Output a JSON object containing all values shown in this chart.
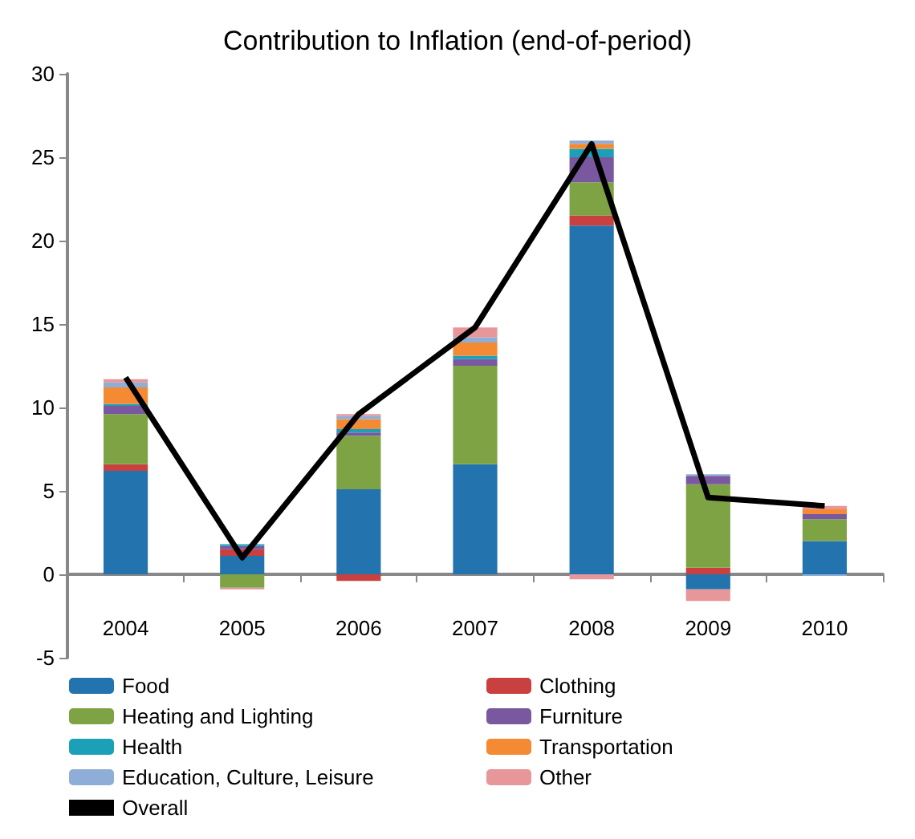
{
  "chart_data": {
    "type": "bar",
    "title": "Contribution to Inflation (end-of-period)",
    "stacked": true,
    "categories": [
      "2004",
      "2005",
      "2006",
      "2007",
      "2008",
      "2009",
      "2010"
    ],
    "series": [
      {
        "name": "Food",
        "color": "#2373ae",
        "values": [
          6.2,
          1.1,
          5.1,
          6.6,
          20.9,
          -0.9,
          2.0
        ]
      },
      {
        "name": "Clothing",
        "color": "#c8403f",
        "values": [
          0.4,
          0.4,
          -0.4,
          0,
          0.6,
          0.4,
          0
        ]
      },
      {
        "name": "Heating and Lighting",
        "color": "#7ea345",
        "values": [
          3.0,
          -0.8,
          3.2,
          5.9,
          2.0,
          5.0,
          1.3
        ]
      },
      {
        "name": "Furniture",
        "color": "#7a58a0",
        "values": [
          0.5,
          0.2,
          0.2,
          0.4,
          1.5,
          0.5,
          0.3
        ]
      },
      {
        "name": "Health",
        "color": "#1ba0b8",
        "values": [
          0.1,
          0.1,
          0.2,
          0.2,
          0.5,
          0,
          0
        ]
      },
      {
        "name": "Transportation",
        "color": "#f48a33",
        "values": [
          1.0,
          0,
          0.6,
          0.8,
          0.3,
          0,
          0.3
        ]
      },
      {
        "name": "Education, Culture, Leisure",
        "color": "#8eaed8",
        "values": [
          0.3,
          0,
          0.2,
          0.3,
          0.2,
          0.1,
          -0.1
        ]
      },
      {
        "name": "Other",
        "color": "#e7969a",
        "values": [
          0.2,
          -0.1,
          0.1,
          0.6,
          -0.3,
          -0.7,
          0.2
        ]
      },
      {
        "name": "Overall",
        "type": "line",
        "color": "#000000",
        "values": [
          11.8,
          1.0,
          9.6,
          14.8,
          25.8,
          4.6,
          4.1
        ]
      }
    ],
    "ylim": [
      -5,
      30
    ],
    "yticks": [
      -5,
      0,
      5,
      10,
      15,
      20,
      25,
      30
    ],
    "legend": "bottom",
    "marker": "none"
  }
}
